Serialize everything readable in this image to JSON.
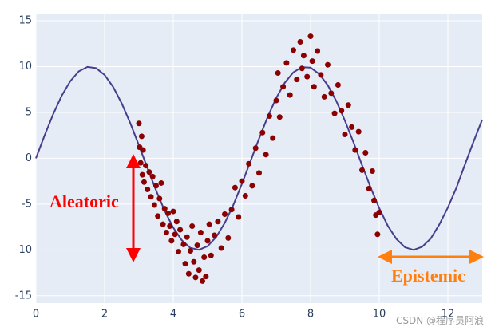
{
  "chart_data": {
    "type": "scatter",
    "xlim": [
      0,
      13
    ],
    "ylim": [
      -15.8,
      15.7
    ],
    "xticks": [
      0,
      2,
      4,
      6,
      8,
      10,
      12
    ],
    "yticks": [
      -15,
      -10,
      -5,
      0,
      5,
      10,
      15
    ],
    "grid": true,
    "background": "#e5ecf6",
    "series": [
      {
        "type": "line",
        "color": "#483d8b",
        "x": [
          0,
          0.25,
          0.5,
          0.75,
          1,
          1.25,
          1.5,
          1.75,
          2,
          2.25,
          2.5,
          2.75,
          3,
          3.25,
          3.5,
          3.75,
          4,
          4.25,
          4.5,
          4.75,
          5,
          5.25,
          5.5,
          5.75,
          6,
          6.25,
          6.5,
          6.75,
          7,
          7.25,
          7.5,
          7.75,
          8,
          8.25,
          8.5,
          8.75,
          9,
          9.25,
          9.5,
          9.75,
          10,
          10.25,
          10.5,
          10.75,
          11,
          11.25,
          11.5,
          11.75,
          12,
          12.25,
          12.5,
          12.75,
          13
        ],
        "values": [
          0,
          2.47,
          4.79,
          6.82,
          8.41,
          9.49,
          9.97,
          9.84,
          9.09,
          7.78,
          5.98,
          3.82,
          1.41,
          -1.08,
          -3.51,
          -5.72,
          -7.57,
          -8.95,
          -9.78,
          -9.99,
          -9.59,
          -8.59,
          -7.06,
          -5.1,
          -2.79,
          -0.32,
          2.15,
          4.51,
          6.57,
          8.24,
          9.38,
          9.94,
          9.89,
          9.2,
          7.98,
          6.24,
          4.12,
          1.74,
          -0.75,
          -3.19,
          -5.44,
          -7.37,
          -8.8,
          -9.71,
          -10,
          -9.66,
          -8.76,
          -7.23,
          -5.37,
          -3.21,
          -0.66,
          1.83,
          4.2
        ]
      },
      {
        "type": "scatter",
        "color": "#8b0000",
        "x": [
          3.0,
          3.02,
          3.05,
          3.08,
          3.1,
          3.12,
          3.15,
          3.2,
          3.25,
          3.3,
          3.35,
          3.4,
          3.45,
          3.5,
          3.55,
          3.6,
          3.65,
          3.7,
          3.75,
          3.8,
          3.85,
          3.9,
          3.95,
          4.0,
          4.05,
          4.1,
          4.15,
          4.2,
          4.3,
          4.35,
          4.4,
          4.45,
          4.5,
          4.55,
          4.6,
          4.65,
          4.7,
          4.75,
          4.8,
          4.85,
          4.9,
          4.95,
          5.0,
          5.05,
          5.1,
          5.2,
          5.3,
          5.4,
          5.5,
          5.6,
          5.7,
          5.8,
          5.9,
          6.0,
          6.1,
          6.2,
          6.3,
          6.4,
          6.5,
          6.6,
          6.7,
          6.8,
          6.9,
          7.0,
          7.05,
          7.1,
          7.2,
          7.3,
          7.4,
          7.5,
          7.6,
          7.7,
          7.75,
          7.8,
          7.9,
          8.0,
          8.05,
          8.1,
          8.2,
          8.3,
          8.4,
          8.5,
          8.6,
          8.7,
          8.8,
          8.9,
          9.0,
          9.1,
          9.2,
          9.3,
          9.4,
          9.5,
          9.6,
          9.7,
          9.8,
          9.85,
          9.9,
          9.95,
          10.0
        ],
        "values": [
          3.8,
          1.2,
          -0.5,
          2.4,
          -1.8,
          0.9,
          -2.6,
          -0.8,
          -3.4,
          -1.5,
          -4.2,
          -2.0,
          -5.1,
          -3.0,
          -6.3,
          -4.4,
          -2.7,
          -7.2,
          -5.5,
          -8.1,
          -6.0,
          -7.4,
          -9.0,
          -5.8,
          -8.3,
          -6.9,
          -10.2,
          -7.8,
          -9.4,
          -11.5,
          -8.6,
          -12.6,
          -10.1,
          -7.4,
          -11.3,
          -13.0,
          -9.5,
          -12.2,
          -8.1,
          -13.4,
          -10.8,
          -12.9,
          -9.0,
          -7.2,
          -10.6,
          -8.4,
          -6.9,
          -9.8,
          -6.1,
          -8.7,
          -5.6,
          -3.2,
          -6.4,
          -2.5,
          -4.1,
          -0.6,
          -3.0,
          1.1,
          -1.6,
          2.8,
          0.4,
          4.6,
          2.2,
          6.3,
          9.3,
          4.5,
          7.8,
          10.4,
          6.9,
          11.8,
          8.6,
          12.7,
          9.8,
          11.2,
          8.9,
          13.3,
          10.6,
          7.8,
          11.7,
          9.1,
          6.7,
          10.2,
          7.1,
          4.9,
          8.0,
          5.2,
          2.6,
          5.8,
          3.4,
          0.9,
          2.9,
          -1.3,
          0.6,
          -3.3,
          -1.4,
          -4.6,
          -6.2,
          -8.3,
          -5.9
        ]
      }
    ],
    "annotations": [
      {
        "text": "Aleatoric",
        "color": "#ff0000"
      },
      {
        "text": "Epistemic",
        "color": "#ff7f0e"
      }
    ],
    "watermark": "CSDN @程序员阿浪"
  }
}
